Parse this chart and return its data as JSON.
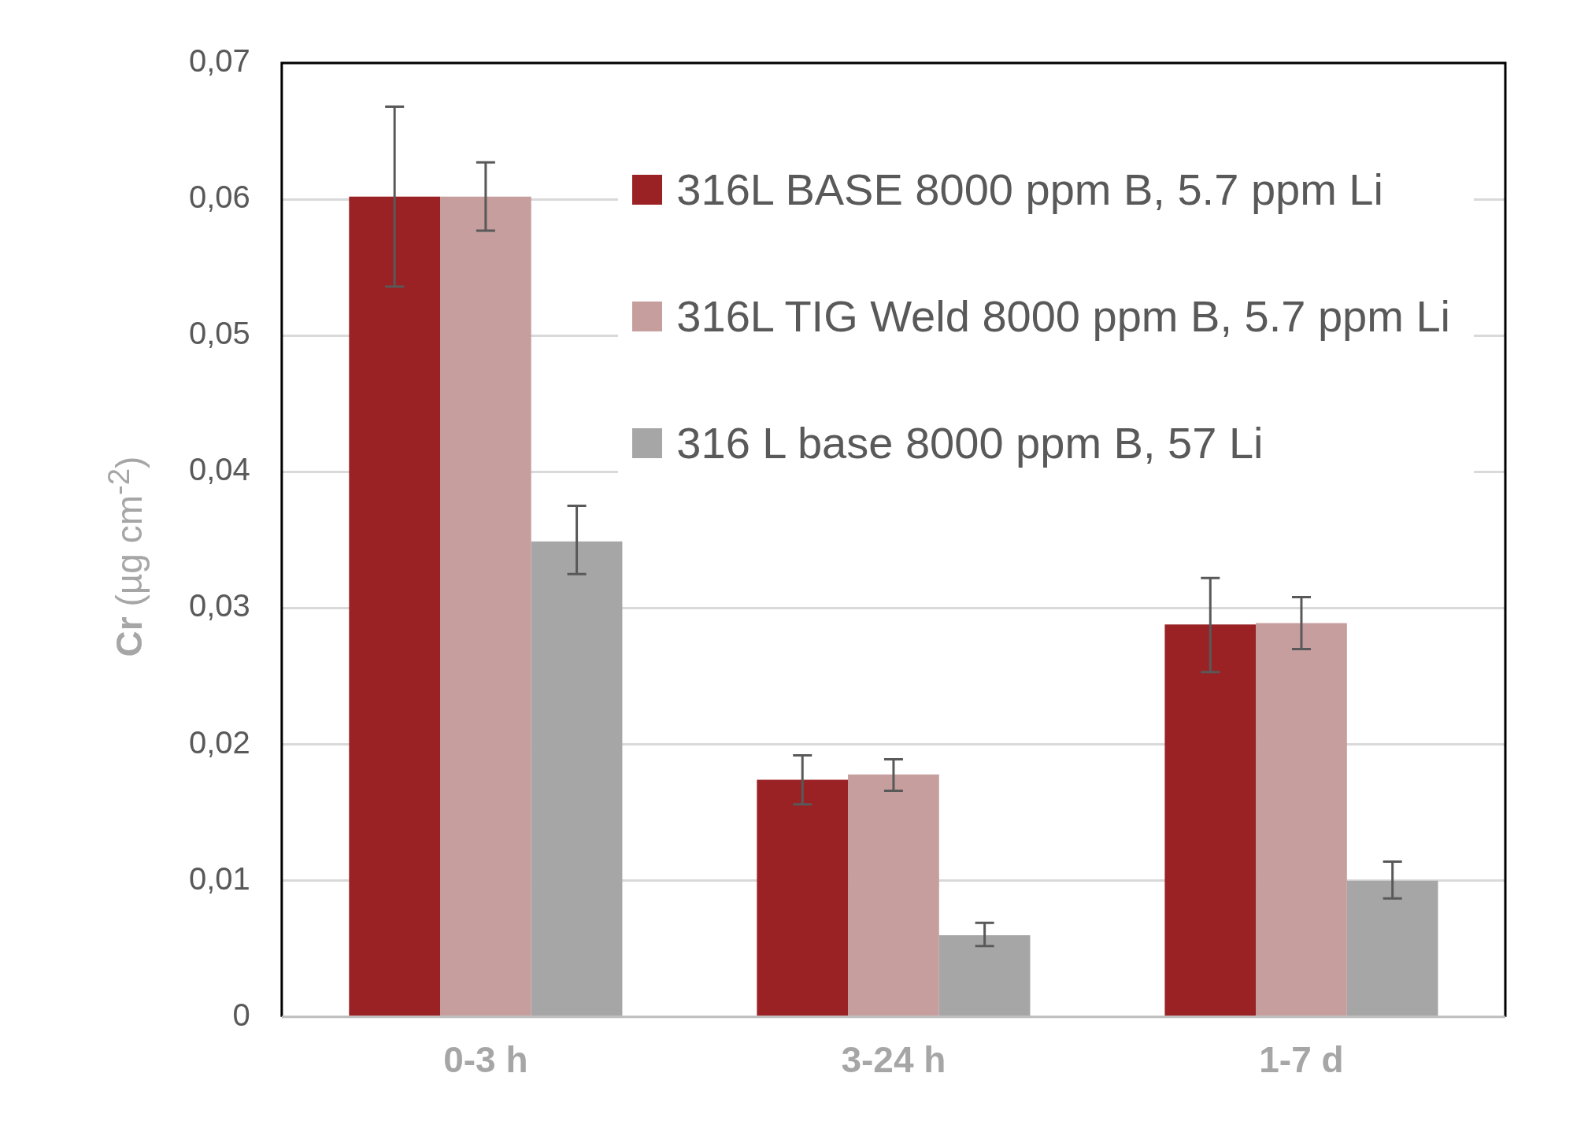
{
  "chart_data": {
    "type": "bar",
    "ylabel": "Cr (µg cm$^{-2}$)",
    "categories": [
      "0-3 h",
      "3-24 h",
      "1-7 d"
    ],
    "series": [
      {
        "name": "316L BASE 8000 ppm B, 5.7 ppm Li",
        "color": "#9a2124",
        "values": [
          0.0602,
          0.0174,
          0.0288
        ],
        "errors": [
          [
            0.0536,
            0.0668
          ],
          [
            0.0156,
            0.0192
          ],
          [
            0.0253,
            0.0322
          ]
        ]
      },
      {
        "name": "316L TIG Weld 8000 ppm B, 5.7 ppm Li",
        "color": "#c69e9e",
        "values": [
          0.0602,
          0.0178,
          0.0289
        ],
        "errors": [
          [
            0.0577,
            0.0627
          ],
          [
            0.0166,
            0.0189
          ],
          [
            0.027,
            0.0308
          ]
        ]
      },
      {
        "name": "316 L base 8000 ppm B, 57 Li",
        "color": "#a6a6a6",
        "values": [
          0.0349,
          0.006,
          0.01
        ],
        "errors": [
          [
            0.0325,
            0.0375
          ],
          [
            0.0052,
            0.0069
          ],
          [
            0.0087,
            0.0114
          ]
        ]
      }
    ],
    "ylim": [
      0,
      0.07
    ],
    "yticks": [
      0,
      {
        "value": 0.01,
        "label": "0,01"
      },
      {
        "value": 0.02,
        "label": "0,02"
      },
      {
        "value": 0.03,
        "label": "0,03"
      },
      {
        "value": 0.04,
        "label": "0,04"
      },
      {
        "value": 0.05,
        "label": "0,05"
      },
      {
        "value": 0.06,
        "label": "0,06"
      },
      {
        "value": 0.07,
        "label": "0,07"
      }
    ],
    "grid": "y",
    "legend": "top right"
  }
}
